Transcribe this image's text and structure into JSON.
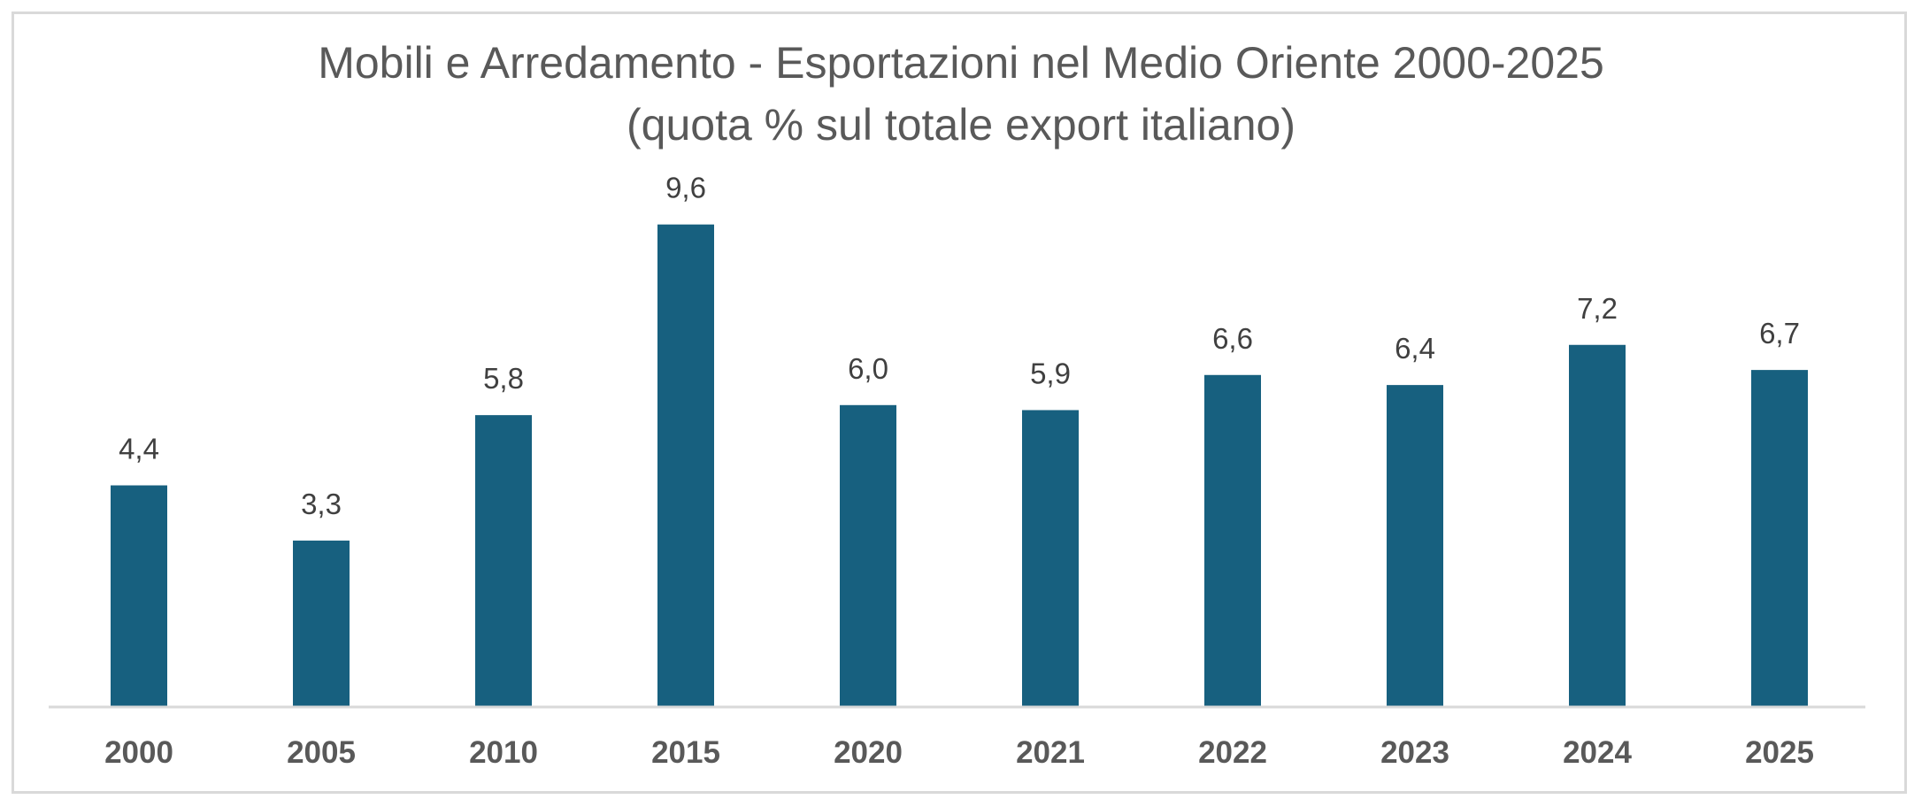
{
  "chart_data": {
    "type": "bar",
    "title": "Mobili e Arredamento - Esportazioni nel Medio Oriente 2000-2025",
    "subtitle": "(quota % sul totale export italiano)",
    "categories": [
      "2000",
      "2005",
      "2010",
      "2015",
      "2020",
      "2021",
      "2022",
      "2023",
      "2024",
      "2025"
    ],
    "values": [
      4.4,
      3.3,
      5.8,
      9.6,
      6.0,
      5.9,
      6.6,
      6.4,
      7.2,
      6.7
    ],
    "labels": [
      "4,4",
      "3,3",
      "5,8",
      "9,6",
      "6,0",
      "5,9",
      "6,6",
      "6,4",
      "7,2",
      "6,7"
    ],
    "xlabel": "",
    "ylabel": "",
    "ylim": [
      0,
      10
    ],
    "grid": false,
    "legend": "none",
    "bar_color": "#17607f",
    "text_color": "#595959"
  }
}
